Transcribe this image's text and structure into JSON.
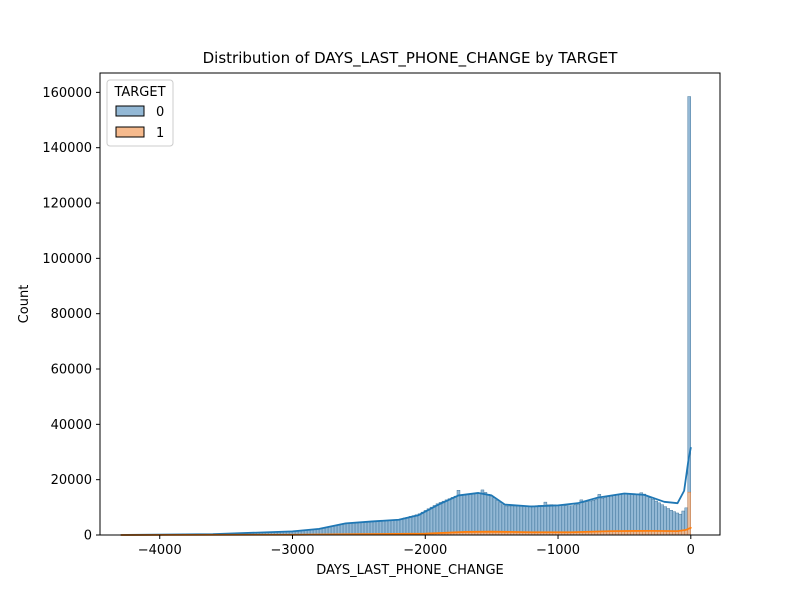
{
  "chart_data": {
    "type": "histogram",
    "title": "Distribution of DAYS_LAST_PHONE_CHANGE by TARGET",
    "xlabel": "DAYS_LAST_PHONE_CHANGE",
    "ylabel": "Count",
    "xlim": [
      -4450,
      220
    ],
    "ylim": [
      0,
      167000
    ],
    "x_ticks": [
      -4000,
      -3000,
      -2000,
      -1000,
      0
    ],
    "x_tick_labels": [
      "−4000",
      "−3000",
      "−2000",
      "−1000",
      "0"
    ],
    "y_ticks": [
      0,
      20000,
      40000,
      60000,
      80000,
      100000,
      120000,
      140000,
      160000
    ],
    "y_tick_labels": [
      "0",
      "20000",
      "40000",
      "60000",
      "80000",
      "100000",
      "120000",
      "140000",
      "160000"
    ],
    "grid": false,
    "legend": {
      "title": "TARGET",
      "placement": "top-left"
    },
    "bin_range": [
      -4290,
      0
    ],
    "bin_count": 190,
    "series": [
      {
        "name": "0",
        "bar_color": "#93b8d5",
        "edge_color": "#1f5a85",
        "kde_color": "#1f77b4",
        "profile": [
          [
            -4290,
            0
          ],
          [
            -3800,
            200
          ],
          [
            -3400,
            500
          ],
          [
            -3000,
            1300
          ],
          [
            -2800,
            2200
          ],
          [
            -2600,
            4300
          ],
          [
            -2400,
            5000
          ],
          [
            -2200,
            5600
          ],
          [
            -2050,
            7500
          ],
          [
            -1900,
            11500
          ],
          [
            -1750,
            14500
          ],
          [
            -1650,
            14800
          ],
          [
            -1550,
            15500
          ],
          [
            -1480,
            13500
          ],
          [
            -1400,
            10500
          ],
          [
            -1200,
            10500
          ],
          [
            -1050,
            11000
          ],
          [
            -900,
            10500
          ],
          [
            -700,
            13000
          ],
          [
            -500,
            15000
          ],
          [
            -350,
            14800
          ],
          [
            -250,
            12000
          ],
          [
            -150,
            9000
          ],
          [
            -80,
            7500
          ],
          [
            -30,
            10000
          ],
          [
            0,
            10000
          ]
        ],
        "spikes": [
          [
            -1740,
            16200
          ],
          [
            -1560,
            16300
          ],
          [
            -1100,
            11900
          ],
          [
            -820,
            12700
          ],
          [
            -690,
            14700
          ],
          [
            -380,
            15300
          ],
          [
            0,
            158500
          ]
        ],
        "kde": [
          [
            -4290,
            0
          ],
          [
            -3600,
            300
          ],
          [
            -3000,
            1300
          ],
          [
            -2800,
            2200
          ],
          [
            -2600,
            4200
          ],
          [
            -2400,
            4900
          ],
          [
            -2200,
            5500
          ],
          [
            -2050,
            7200
          ],
          [
            -1900,
            11000
          ],
          [
            -1750,
            14300
          ],
          [
            -1600,
            15200
          ],
          [
            -1500,
            14300
          ],
          [
            -1400,
            11000
          ],
          [
            -1200,
            10300
          ],
          [
            -1000,
            10700
          ],
          [
            -850,
            11500
          ],
          [
            -700,
            13500
          ],
          [
            -500,
            15000
          ],
          [
            -350,
            14500
          ],
          [
            -200,
            12000
          ],
          [
            -100,
            11500
          ],
          [
            -50,
            16000
          ],
          [
            -15,
            28000
          ],
          [
            0,
            31500
          ]
        ]
      },
      {
        "name": "1",
        "bar_color": "#f6ba8d",
        "edge_color": "#c9631e",
        "kde_color": "#ff7f0e",
        "profile": [
          [
            -4290,
            0
          ],
          [
            -3000,
            100
          ],
          [
            -2500,
            300
          ],
          [
            -2000,
            500
          ],
          [
            -1700,
            1200
          ],
          [
            -1500,
            1300
          ],
          [
            -1200,
            1000
          ],
          [
            -900,
            1000
          ],
          [
            -600,
            1500
          ],
          [
            -300,
            1600
          ],
          [
            -100,
            1400
          ],
          [
            -30,
            1800
          ],
          [
            0,
            1800
          ]
        ],
        "spikes": [
          [
            0,
            15500
          ]
        ],
        "kde": [
          [
            -4290,
            0
          ],
          [
            -3000,
            100
          ],
          [
            -2500,
            300
          ],
          [
            -2000,
            500
          ],
          [
            -1700,
            1100
          ],
          [
            -1500,
            1200
          ],
          [
            -1200,
            1000
          ],
          [
            -900,
            1000
          ],
          [
            -600,
            1400
          ],
          [
            -300,
            1500
          ],
          [
            -100,
            1400
          ],
          [
            -40,
            1800
          ],
          [
            0,
            2600
          ]
        ]
      }
    ]
  }
}
